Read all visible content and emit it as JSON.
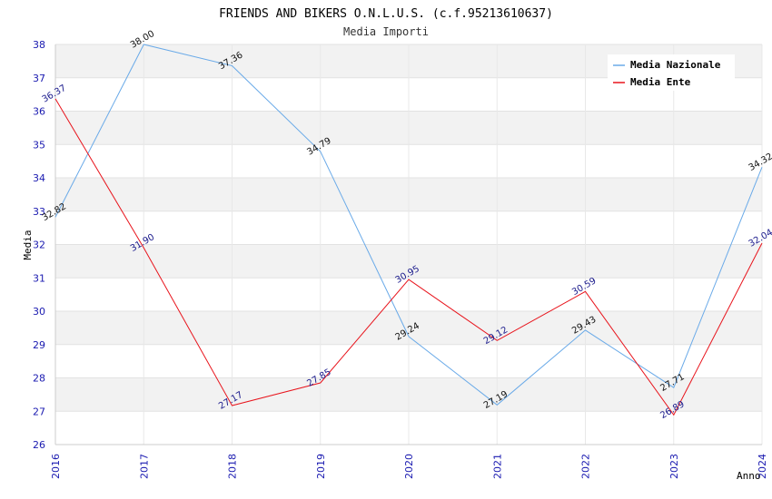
{
  "chart_data": {
    "type": "line",
    "title": "FRIENDS AND BIKERS O.N.L.U.S. (c.f.95213610637)",
    "subtitle": "Media Importi",
    "xlabel": "Anno",
    "ylabel": "Media",
    "x": [
      "2016",
      "2017",
      "2018",
      "2019",
      "2020",
      "2021",
      "2022",
      "2023",
      "2024"
    ],
    "ylim": [
      26,
      38
    ],
    "yticks": [
      "26",
      "27",
      "28",
      "29",
      "30",
      "31",
      "32",
      "33",
      "34",
      "35",
      "36",
      "37",
      "38"
    ],
    "grid": true,
    "legend_position": "top-right",
    "series": [
      {
        "name": "Media Nazionale",
        "color": "#6aaae8",
        "values": [
          32.82,
          38.0,
          37.36,
          34.79,
          29.24,
          27.19,
          29.43,
          27.71,
          34.32
        ],
        "labels": [
          "32.82",
          "38.00",
          "37.36",
          "34.79",
          "29.24",
          "27.19",
          "29.43",
          "27.71",
          "34.32"
        ]
      },
      {
        "name": "Media Ente",
        "color": "#e8141c",
        "values": [
          36.37,
          31.9,
          27.17,
          27.85,
          30.95,
          29.12,
          30.59,
          26.89,
          32.04
        ],
        "labels": [
          "36.37",
          "31.90",
          "27.17",
          "27.85",
          "30.95",
          "29.12",
          "30.59",
          "26.89",
          "32.04"
        ]
      }
    ]
  }
}
